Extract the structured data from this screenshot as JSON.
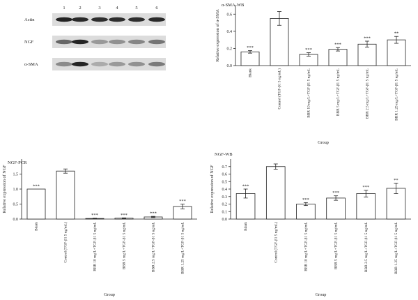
{
  "figure": {
    "blot": {
      "lanes": [
        "1",
        "2",
        "3",
        "4",
        "5",
        "6"
      ],
      "rows": [
        {
          "label": "Actin",
          "intensity": [
            0.93,
            0.9,
            0.88,
            0.88,
            0.88,
            0.9
          ]
        },
        {
          "label": "NGF",
          "intensity": [
            0.62,
            0.92,
            0.38,
            0.42,
            0.47,
            0.55
          ]
        },
        {
          "label": "α-SMA",
          "intensity": [
            0.45,
            0.92,
            0.3,
            0.38,
            0.42,
            0.52
          ]
        }
      ]
    }
  },
  "chart_data": [
    {
      "type": "bar",
      "panel": "top-right",
      "title": "α-SMA-WB",
      "xlabel": "Group",
      "ylabel": "Relative expression of α-SMA",
      "ylim": [
        0,
        0.7
      ],
      "yticks": [
        "0.0",
        "0.2",
        "0.4",
        "0.6"
      ],
      "grid": false,
      "categories": [
        "Blank",
        "Control (TGF-β1 5 ng/mL)",
        "BBR 10 mg/L+TGF-β1 5 ng/mL",
        "BBR 5 mg/L+TGF-β1 5 ng/mL",
        "BBR 2.5 mg/L+TGF-β1 5 ng/mL",
        "BBR 1.25 mg/L+TGF-β1 5 ng/mL"
      ],
      "values": [
        0.16,
        0.55,
        0.13,
        0.19,
        0.25,
        0.3
      ],
      "errors": [
        0.015,
        0.08,
        0.02,
        0.02,
        0.035,
        0.04
      ],
      "significance": [
        "***",
        "",
        "***",
        "***",
        "***",
        "**"
      ]
    },
    {
      "type": "bar",
      "panel": "bottom-left",
      "title": "NGF-PCR",
      "xlabel": "Group",
      "ylabel": "Relative expression of NGF",
      "ylim": [
        0,
        2.0
      ],
      "yticks": [
        "0.0",
        "0.5",
        "1.0",
        "1.5"
      ],
      "grid": false,
      "categories": [
        "Blank",
        "Control (TGF-β1 5 ng/mL)",
        "BBR 10 mg/L+TGF-β1 5 ng/mL",
        "BBR 5 mg/L+TGF-β1 5 ng/mL",
        "BBR 2.5 mg/L+TGF-β1 5 ng/mL",
        "BBR 1.25 mg/L+TGF-β1 5 ng/mL"
      ],
      "values": [
        1.0,
        1.6,
        0.02,
        0.03,
        0.07,
        0.42
      ],
      "errors": [
        0.0,
        0.07,
        0.01,
        0.01,
        0.02,
        0.08
      ],
      "significance": [
        "***",
        "",
        "***",
        "***",
        "***",
        "***"
      ]
    },
    {
      "type": "bar",
      "panel": "bottom-right",
      "title": "NGF-WB",
      "xlabel": "Group",
      "ylabel": "Relative expression of NGF",
      "ylim": [
        0,
        0.8
      ],
      "yticks": [
        "0.0",
        "0.1",
        "0.2",
        "0.3",
        "0.4",
        "0.5",
        "0.6",
        "0.7"
      ],
      "grid": false,
      "categories": [
        "Blank",
        "Control (TGF-β1 5 ng/mL)",
        "BBR 10 mg/L+TGF-β1 5 ng/mL",
        "BBR 5 mg/L+TGF-β1 5 ng/mL",
        "BBR 2.5 mg/L+TGF-β1 5 ng/mL",
        "BBR 1.25 mg/L+TGF-β1 5 ng/mL"
      ],
      "values": [
        0.34,
        0.7,
        0.2,
        0.28,
        0.34,
        0.41
      ],
      "errors": [
        0.06,
        0.035,
        0.02,
        0.03,
        0.045,
        0.07
      ],
      "significance": [
        "***",
        "",
        "***",
        "***",
        "***",
        "**"
      ]
    }
  ]
}
